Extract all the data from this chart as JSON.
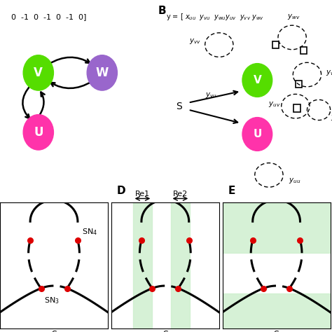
{
  "title_top_left": "0  -1  0  -1  0  -1  0]",
  "node_V_color": "#55dd00",
  "node_W_color": "#9966cc",
  "node_U_color": "#ff33aa",
  "bg_color": "#ffffff",
  "green_bg": "#cceecc",
  "red_dot": "#dd0000",
  "SN4_label": "SN₄",
  "SN3_label": "SN₃",
  "Re1_label": "Re1",
  "Re2_label": "Re2",
  "S_label": "S",
  "panel_D_label": "D",
  "panel_E_label": "E",
  "panel_B_label": "B"
}
